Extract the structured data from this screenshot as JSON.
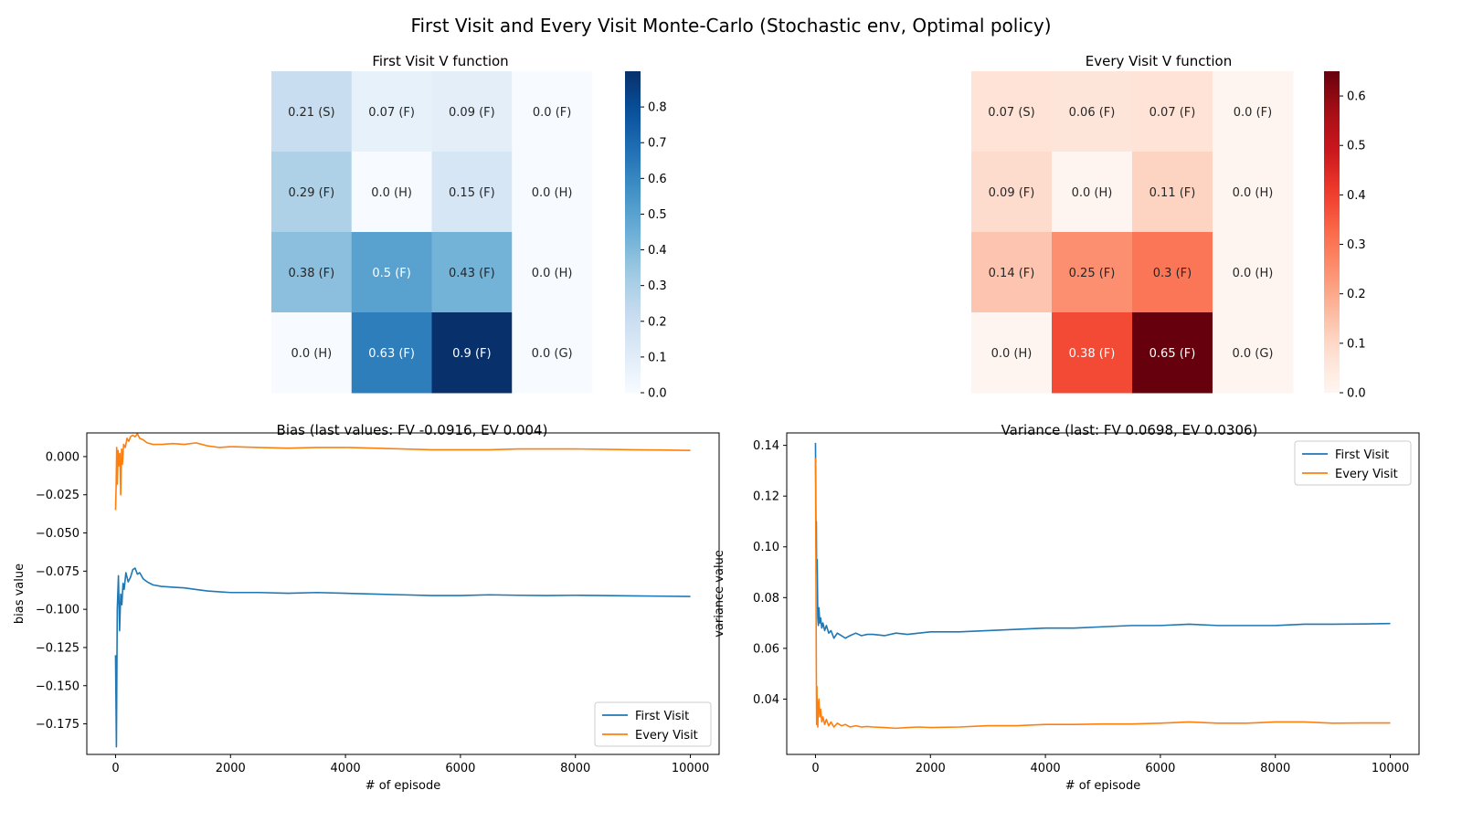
{
  "title": "First Visit and Every Visit Monte-Carlo (Stochastic env, Optimal policy)",
  "chart_data": [
    {
      "type": "heatmap",
      "title": "First Visit V function",
      "cmap": "Blues",
      "colorbar_range": [
        0,
        0.9
      ],
      "colorbar_ticks": [
        "0.0",
        "0.1",
        "0.2",
        "0.3",
        "0.4",
        "0.5",
        "0.6",
        "0.7",
        "0.8"
      ],
      "values": [
        [
          0.21,
          0.07,
          0.09,
          0.0
        ],
        [
          0.29,
          0.0,
          0.15,
          0.0
        ],
        [
          0.38,
          0.5,
          0.43,
          0.0
        ],
        [
          0.0,
          0.63,
          0.9,
          0.0
        ]
      ],
      "labels": [
        [
          "0.21 (S)",
          "0.07 (F)",
          "0.09 (F)",
          "0.0 (F)"
        ],
        [
          "0.29 (F)",
          "0.0 (H)",
          "0.15 (F)",
          "0.0 (H)"
        ],
        [
          "0.38 (F)",
          "0.5 (F)",
          "0.43 (F)",
          "0.0 (H)"
        ],
        [
          "0.0 (H)",
          "0.63 (F)",
          "0.9 (F)",
          "0.0 (G)"
        ]
      ]
    },
    {
      "type": "heatmap",
      "title": "Every Visit V function",
      "cmap": "Reds",
      "colorbar_range": [
        0,
        0.65
      ],
      "colorbar_ticks": [
        "0.0",
        "0.1",
        "0.2",
        "0.3",
        "0.4",
        "0.5",
        "0.6"
      ],
      "values": [
        [
          0.07,
          0.06,
          0.07,
          0.0
        ],
        [
          0.09,
          0.0,
          0.11,
          0.0
        ],
        [
          0.14,
          0.25,
          0.3,
          0.0
        ],
        [
          0.0,
          0.38,
          0.65,
          0.0
        ]
      ],
      "labels": [
        [
          "0.07 (S)",
          "0.06 (F)",
          "0.07 (F)",
          "0.0 (F)"
        ],
        [
          "0.09 (F)",
          "0.0 (H)",
          "0.11 (F)",
          "0.0 (H)"
        ],
        [
          "0.14 (F)",
          "0.25 (F)",
          "0.3 (F)",
          "0.0 (H)"
        ],
        [
          "0.0 (H)",
          "0.38 (F)",
          "0.65 (F)",
          "0.0 (G)"
        ]
      ]
    },
    {
      "type": "line",
      "title": "Bias (last values: FV -0.0916, EV 0.004)",
      "xlabel": "# of episode",
      "ylabel": "bias value",
      "xlim": [
        -500,
        10500
      ],
      "ylim": [
        -0.195,
        0.0155
      ],
      "xticks": [
        0,
        2000,
        4000,
        6000,
        8000,
        10000
      ],
      "yticks": [
        0.0,
        -0.025,
        -0.05,
        -0.075,
        -0.1,
        -0.125,
        -0.15,
        -0.175
      ],
      "ytick_labels": [
        "0.000",
        "−0.025",
        "−0.050",
        "−0.075",
        "−0.100",
        "−0.125",
        "−0.150",
        "−0.175"
      ],
      "legend": "lower-right",
      "series": [
        {
          "name": "First Visit",
          "color": "#1f77b4",
          "x": [
            0,
            15,
            30,
            50,
            70,
            90,
            110,
            130,
            150,
            180,
            220,
            260,
            300,
            340,
            380,
            420,
            480,
            550,
            650,
            800,
            1000,
            1200,
            1400,
            1600,
            1800,
            2000,
            2500,
            3000,
            3500,
            4000,
            4500,
            5000,
            5500,
            6000,
            6500,
            7000,
            7500,
            8000,
            8500,
            9000,
            9500,
            10000
          ],
          "y": [
            -0.13,
            -0.19,
            -0.1,
            -0.078,
            -0.114,
            -0.09,
            -0.097,
            -0.083,
            -0.087,
            -0.076,
            -0.082,
            -0.079,
            -0.074,
            -0.073,
            -0.077,
            -0.076,
            -0.08,
            -0.082,
            -0.084,
            -0.085,
            -0.0855,
            -0.086,
            -0.087,
            -0.088,
            -0.0885,
            -0.089,
            -0.089,
            -0.0895,
            -0.089,
            -0.0895,
            -0.09,
            -0.0905,
            -0.091,
            -0.091,
            -0.0905,
            -0.0908,
            -0.091,
            -0.0908,
            -0.091,
            -0.0912,
            -0.0914,
            -0.0916
          ]
        },
        {
          "name": "Every Visit",
          "color": "#ff7f0e",
          "x": [
            0,
            10,
            20,
            30,
            45,
            60,
            75,
            90,
            105,
            120,
            140,
            170,
            200,
            230,
            260,
            300,
            340,
            380,
            420,
            480,
            550,
            650,
            800,
            1000,
            1200,
            1400,
            1600,
            1800,
            2000,
            2500,
            3000,
            3500,
            4000,
            4500,
            5000,
            5500,
            6000,
            6500,
            7000,
            7500,
            8000,
            8500,
            9000,
            9500,
            10000
          ],
          "y": [
            -0.035,
            -0.02,
            0.006,
            -0.018,
            0.004,
            -0.006,
            0.002,
            -0.025,
            0.005,
            -0.005,
            0.008,
            0.006,
            0.012,
            0.01,
            0.013,
            0.014,
            0.013,
            0.015,
            0.012,
            0.011,
            0.009,
            0.008,
            0.008,
            0.0085,
            0.008,
            0.009,
            0.007,
            0.006,
            0.0065,
            0.006,
            0.0055,
            0.006,
            0.006,
            0.0055,
            0.005,
            0.0045,
            0.0045,
            0.0045,
            0.005,
            0.005,
            0.005,
            0.0048,
            0.0045,
            0.0043,
            0.004
          ]
        }
      ]
    },
    {
      "type": "line",
      "title": "Variance (last: FV 0.0698, EV 0.0306)",
      "xlabel": "# of episode",
      "ylabel": "variance value",
      "xlim": [
        -500,
        10500
      ],
      "ylim": [
        0.0182,
        0.1449
      ],
      "xticks": [
        0,
        2000,
        4000,
        6000,
        8000,
        10000
      ],
      "yticks": [
        0.04,
        0.06,
        0.08,
        0.1,
        0.12,
        0.14
      ],
      "ytick_labels": [
        "0.04",
        "0.06",
        "0.08",
        "0.10",
        "0.12",
        "0.14"
      ],
      "legend": "top-right",
      "series": [
        {
          "name": "First Visit",
          "color": "#1f77b4",
          "x": [
            0,
            5,
            10,
            15,
            20,
            30,
            40,
            50,
            60,
            75,
            90,
            110,
            130,
            160,
            190,
            230,
            270,
            320,
            380,
            450,
            520,
            600,
            700,
            800,
            900,
            1000,
            1200,
            1400,
            1600,
            1800,
            2000,
            2500,
            3000,
            3500,
            4000,
            4500,
            5000,
            5500,
            6000,
            6500,
            7000,
            7500,
            8000,
            8500,
            9000,
            9500,
            10000
          ],
          "y": [
            0.141,
            0.125,
            0.1,
            0.11,
            0.09,
            0.095,
            0.072,
            0.069,
            0.076,
            0.07,
            0.072,
            0.068,
            0.07,
            0.067,
            0.069,
            0.066,
            0.067,
            0.064,
            0.066,
            0.065,
            0.064,
            0.065,
            0.066,
            0.065,
            0.0655,
            0.0655,
            0.065,
            0.066,
            0.0655,
            0.066,
            0.0665,
            0.0665,
            0.067,
            0.0675,
            0.068,
            0.068,
            0.0685,
            0.069,
            0.069,
            0.0695,
            0.069,
            0.069,
            0.069,
            0.0695,
            0.0695,
            0.0696,
            0.0698
          ]
        },
        {
          "name": "Every Visit",
          "color": "#ff7f0e",
          "x": [
            0,
            5,
            10,
            15,
            20,
            25,
            30,
            40,
            50,
            60,
            75,
            90,
            110,
            130,
            160,
            190,
            230,
            270,
            320,
            380,
            450,
            520,
            600,
            700,
            800,
            900,
            1000,
            1200,
            1400,
            1600,
            1800,
            2000,
            2500,
            3000,
            3500,
            4000,
            4500,
            5000,
            5500,
            6000,
            6500,
            7000,
            7500,
            8000,
            8500,
            9000,
            9500,
            10000
          ],
          "y": [
            0.135,
            0.11,
            0.08,
            0.05,
            0.03,
            0.045,
            0.035,
            0.029,
            0.038,
            0.04,
            0.033,
            0.036,
            0.031,
            0.033,
            0.03,
            0.032,
            0.0295,
            0.031,
            0.029,
            0.0305,
            0.0295,
            0.03,
            0.029,
            0.0295,
            0.029,
            0.0292,
            0.029,
            0.0288,
            0.0285,
            0.0288,
            0.029,
            0.0288,
            0.029,
            0.0295,
            0.0295,
            0.03,
            0.03,
            0.0302,
            0.0302,
            0.0305,
            0.031,
            0.0305,
            0.0305,
            0.031,
            0.031,
            0.0305,
            0.0306,
            0.0306
          ]
        }
      ]
    }
  ]
}
